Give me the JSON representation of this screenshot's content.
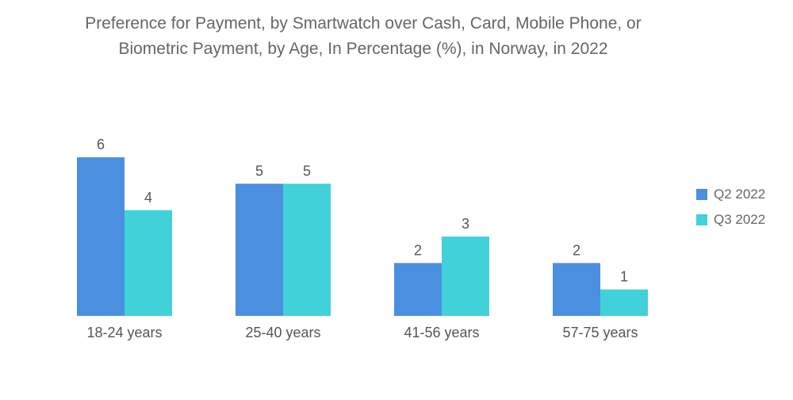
{
  "chart_data": {
    "type": "bar",
    "title_lines": [
      "Preference for Payment, by Smartwatch over Cash, Card, Mobile Phone, or",
      "Biometric Payment, by Age, In Percentage (%), in Norway, in 2022"
    ],
    "categories": [
      "18-24 years",
      "25-40 years",
      "41-56 years",
      "57-75 years"
    ],
    "series": [
      {
        "name": "Q2 2022",
        "color": "#4a8fe0",
        "values": [
          6,
          5,
          2,
          2
        ]
      },
      {
        "name": "Q3 2022",
        "color": "#40d2d8",
        "values": [
          4,
          5,
          3,
          1
        ]
      }
    ],
    "ylim": [
      0,
      6
    ],
    "grid": false,
    "legend_position": "right"
  }
}
